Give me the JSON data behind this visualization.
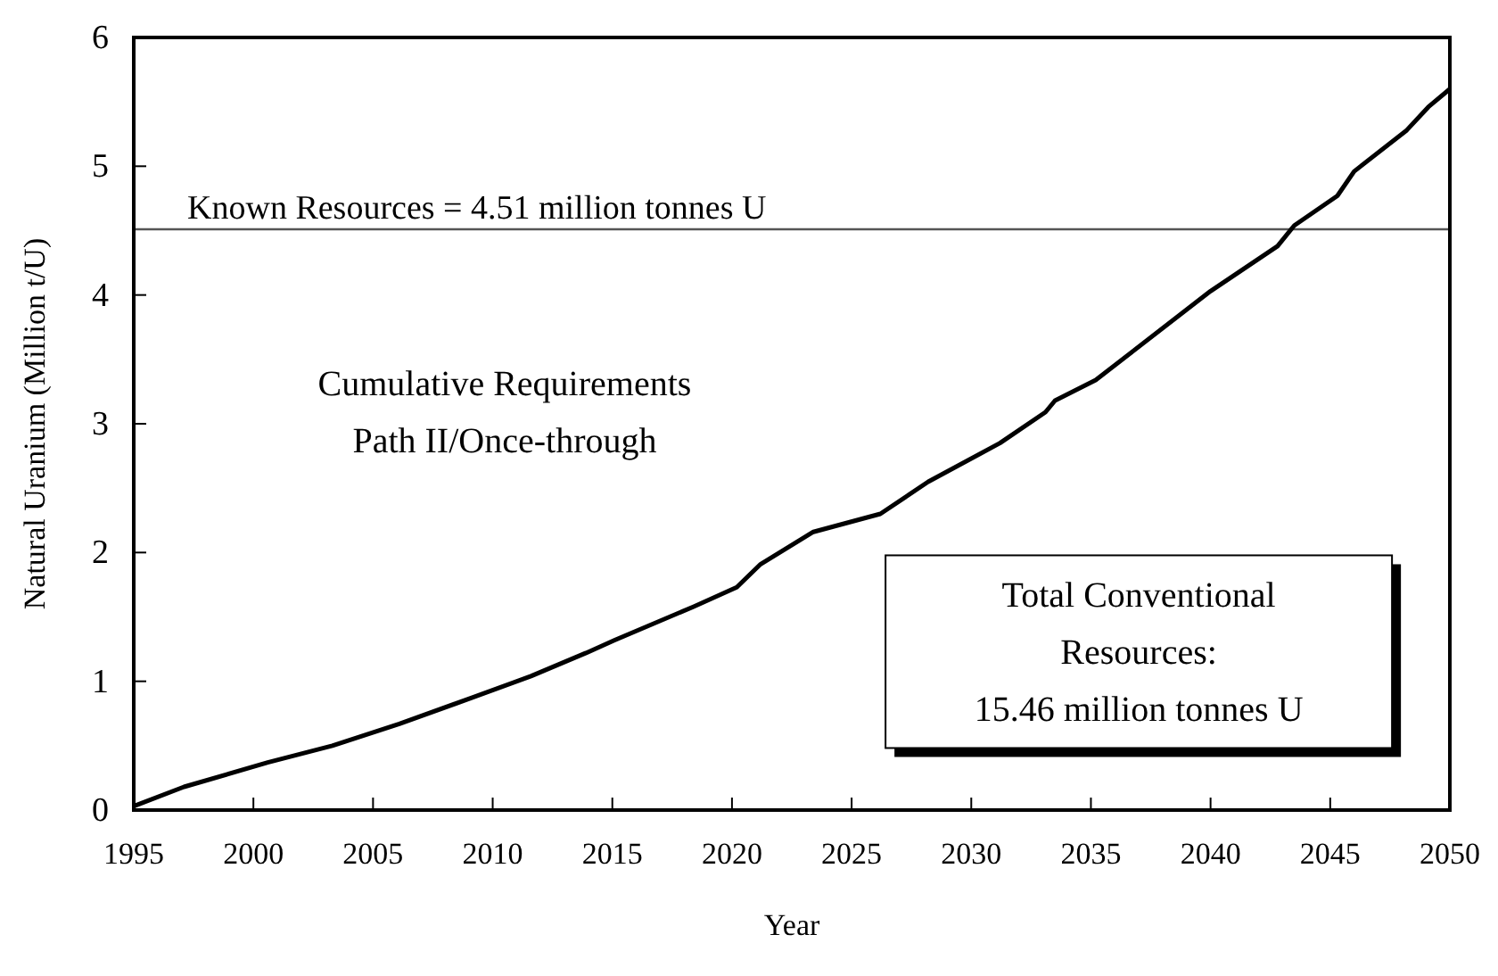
{
  "chart_data": {
    "type": "line",
    "xlabel": "Year",
    "ylabel": "Natural Uranium (Million t/U)",
    "xlim": [
      1995,
      2050
    ],
    "xticks": [
      1995,
      2000,
      2005,
      2010,
      2015,
      2020,
      2025,
      2030,
      2035,
      2040,
      2045,
      2050
    ],
    "ylim": [
      0,
      6
    ],
    "yticks": [
      0,
      1,
      2,
      3,
      4,
      5,
      6
    ],
    "grid": false,
    "marker": "none",
    "line_style": "solid",
    "series": [
      {
        "color": "#000000",
        "x": [
          1995,
          1997.1,
          2000.6,
          2003.3,
          2006.1,
          2009.1,
          2011.6,
          2013.9,
          2015.1,
          2018.4,
          2020.2,
          2021.2,
          2023.4,
          2026.2,
          2028.2,
          2031.2,
          2033.1,
          2033.5,
          2035.2,
          2040.0,
          2042.8,
          2043.5,
          2045.3,
          2046.0,
          2048.2,
          2049.1,
          2050
        ],
        "values": [
          0.03,
          0.18,
          0.37,
          0.5,
          0.67,
          0.87,
          1.04,
          1.22,
          1.32,
          1.58,
          1.73,
          1.91,
          2.16,
          2.3,
          2.55,
          2.85,
          3.09,
          3.18,
          3.34,
          4.03,
          4.38,
          4.54,
          4.77,
          4.96,
          5.28,
          5.46,
          5.6
        ]
      }
    ],
    "ref_lines": [
      {
        "axis": "y",
        "value": 4.51,
        "label": "Known Resources = 4.51 million tonnes U",
        "color": "#555555"
      }
    ],
    "annotations": [
      "Cumulative Requirements\nPath II/Once-through",
      "Total Conventional\nResources:\n15.46 million tonnes U"
    ]
  }
}
